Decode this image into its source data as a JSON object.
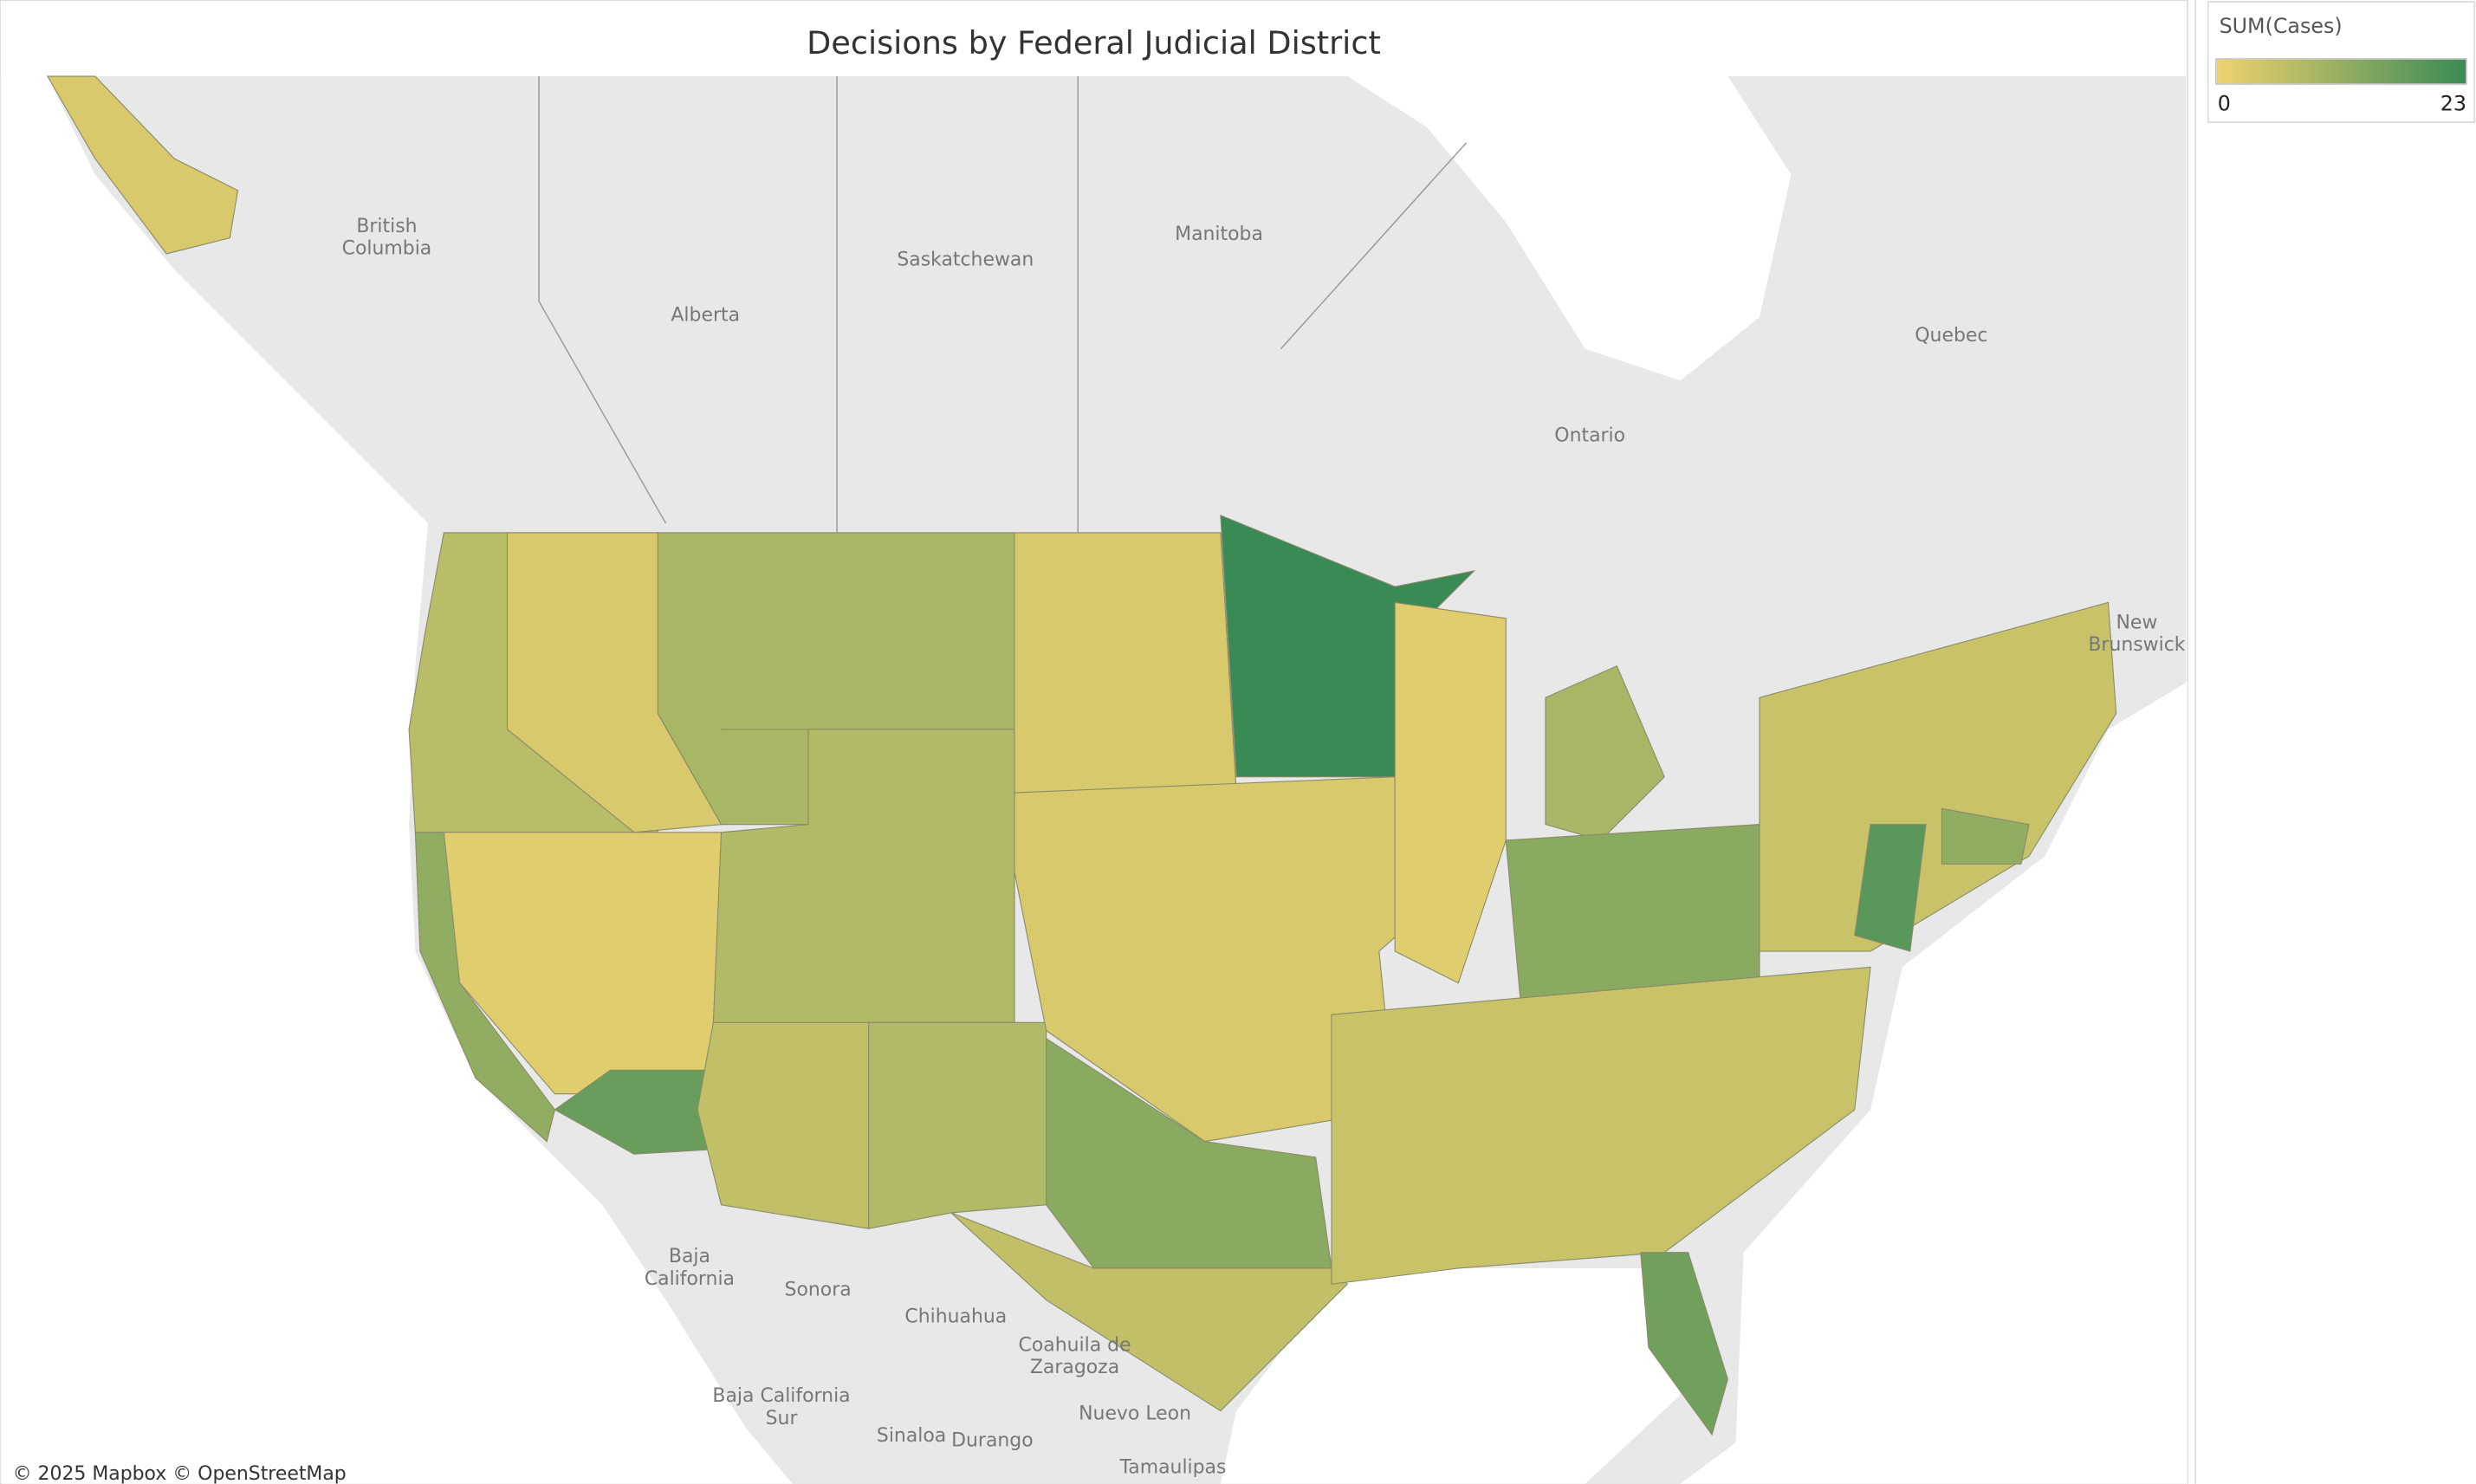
{
  "header": {
    "title": "Decisions by Federal Judicial District"
  },
  "legend": {
    "title": "SUM(Cases)",
    "min": 0,
    "max": 23,
    "color_min": "#f0d36f",
    "color_max": "#3a8a55"
  },
  "map": {
    "districts": [
      3,
      7,
      9,
      3,
      2,
      12,
      17,
      6,
      8,
      8,
      3,
      23,
      3,
      13,
      6,
      2,
      9,
      13,
      5,
      16,
      5,
      19,
      12
    ],
    "places": [
      [
        "British",
        "Columbia"
      ],
      [
        "Alberta"
      ],
      [
        "Saskatchewan"
      ],
      [
        "Manitoba"
      ],
      [
        "Ontario"
      ],
      [
        "Quebec"
      ],
      [
        "New",
        "Brunswick"
      ],
      [
        "Baja",
        "California"
      ],
      [
        "Sonora"
      ],
      [
        "Chihuahua"
      ],
      [
        "Coahuila de",
        "Zaragoza"
      ],
      [
        "Nuevo Leon"
      ],
      [
        "Baja California",
        "Sur"
      ],
      [
        "Sinaloa"
      ],
      [
        "Durango"
      ],
      [
        "Tamaulipas"
      ]
    ],
    "attribution": "© 2025 Mapbox © OpenStreetMap"
  }
}
